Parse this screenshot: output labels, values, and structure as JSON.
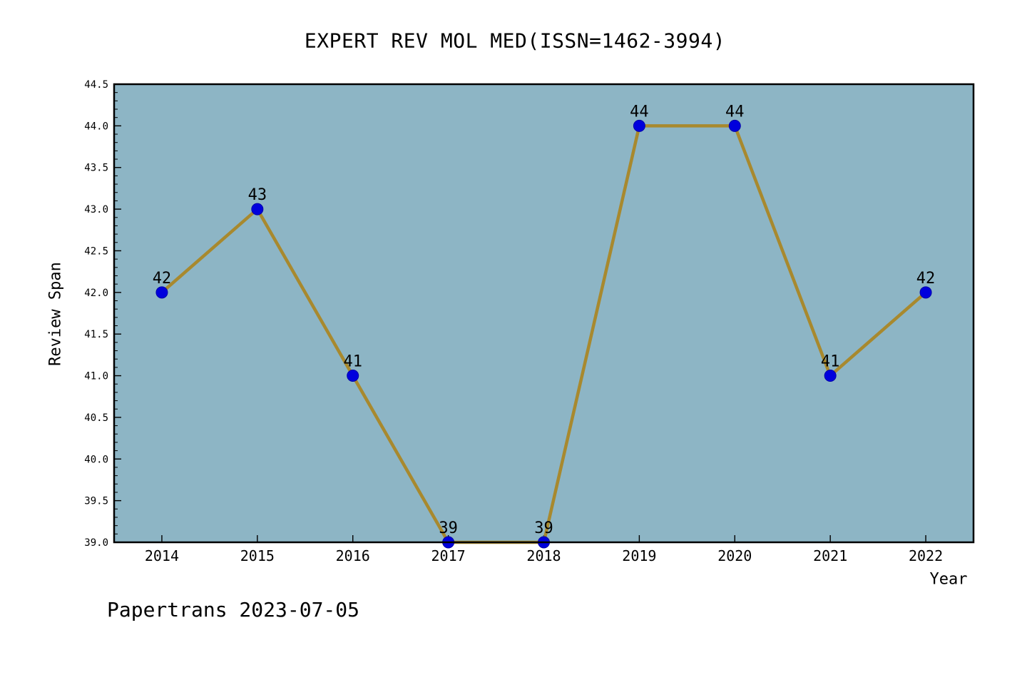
{
  "title": "EXPERT REV MOL MED(ISSN=1462-3994)",
  "footer": "Papertrans 2023-07-05",
  "chart_data": {
    "type": "line",
    "title": "EXPERT REV MOL MED(ISSN=1462-3994)",
    "xlabel": "Year",
    "ylabel": "Review Span",
    "x": [
      2014,
      2015,
      2016,
      2017,
      2018,
      2019,
      2020,
      2021,
      2022
    ],
    "values": [
      42,
      43,
      41,
      39,
      39,
      44,
      44,
      41,
      42
    ],
    "point_labels": [
      "42",
      "43",
      "41",
      "39",
      "39",
      "44",
      "44",
      "41",
      "42"
    ],
    "xticks": [
      2014,
      2015,
      2016,
      2017,
      2018,
      2019,
      2020,
      2021,
      2022
    ],
    "yticks": [
      39.0,
      39.5,
      40.0,
      40.5,
      41.0,
      41.5,
      42.0,
      42.5,
      43.0,
      43.5,
      44.0,
      44.5
    ],
    "ylim": [
      39.0,
      44.5
    ],
    "y_minor_step": 0.1,
    "grid": false,
    "legend": null,
    "colors": {
      "line": "#a8892e",
      "marker": "#0000dd",
      "plot_bg": "#8db5c5",
      "page_bg": "#ffffff",
      "text": "#000000",
      "frame": "#000000"
    }
  }
}
